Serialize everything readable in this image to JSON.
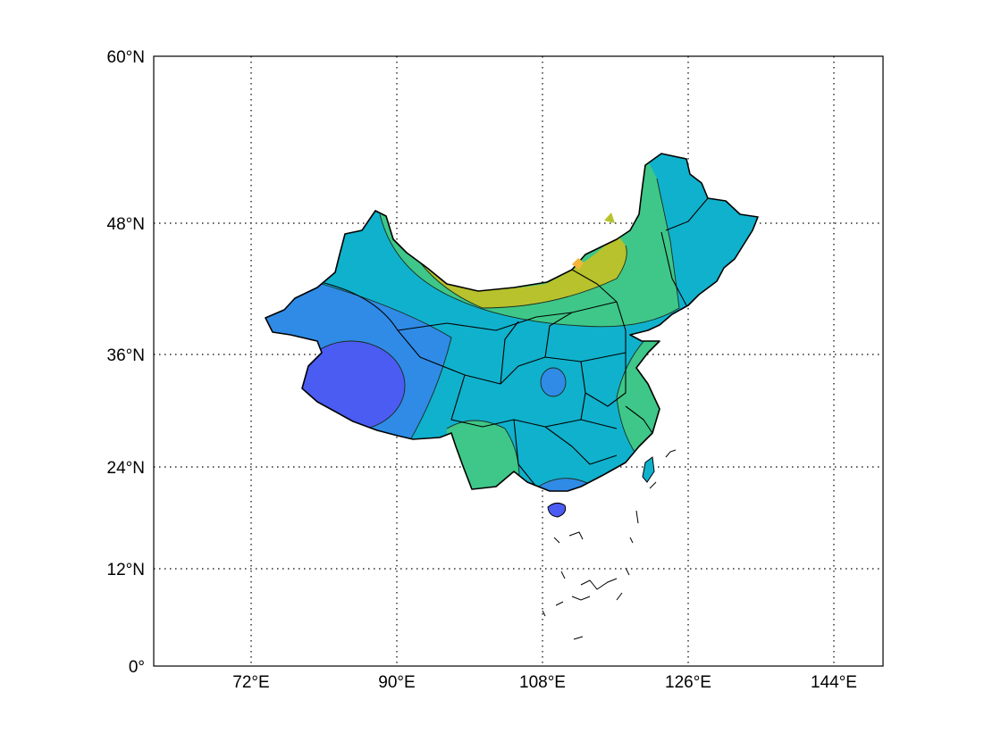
{
  "map": {
    "axes": {
      "x_ticks": [
        "72°E",
        "90°E",
        "108°E",
        "126°E",
        "144°E"
      ],
      "y_ticks": [
        "60°N",
        "48°N",
        "36°N",
        "24°N",
        "12°N",
        "0°"
      ],
      "xlim": [
        60,
        149
      ],
      "ylim": [
        0,
        60
      ],
      "grid": "dotted"
    },
    "region": "China",
    "colors": {
      "deep_blue": "#4a5cf2",
      "blue": "#2f8be6",
      "cyan": "#10b1cc",
      "green": "#3ec788",
      "olive": "#b7c22c",
      "orange": "#f5b538"
    }
  }
}
